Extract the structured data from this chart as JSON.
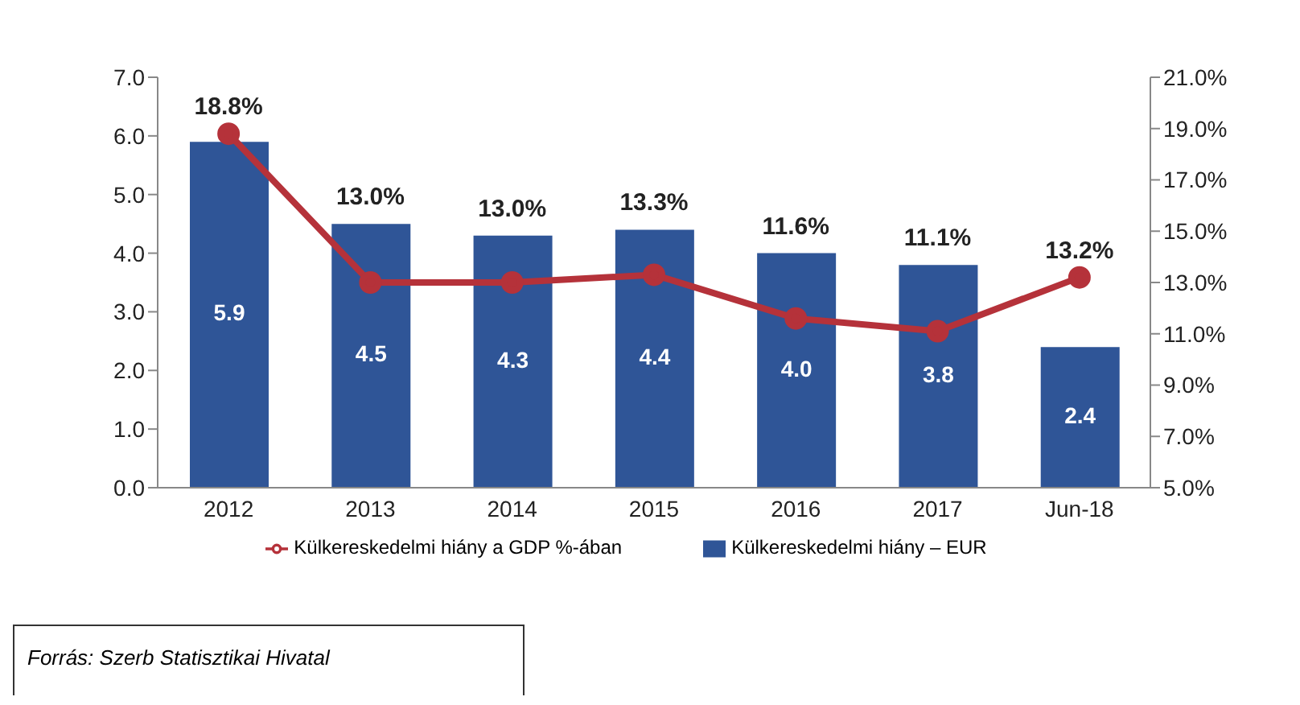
{
  "chart_data": {
    "type": "bar",
    "categories": [
      "2012",
      "2013",
      "2014",
      "2015",
      "2016",
      "2017",
      "Jun-18"
    ],
    "series": [
      {
        "name": "Külkereskedelmi hiány – EUR",
        "color": "#2f5597",
        "values": [
          5.9,
          4.5,
          4.3,
          4.4,
          4.0,
          3.8,
          2.4
        ],
        "value_labels": [
          "5.9",
          "4.5",
          "4.3",
          "4.4",
          "4.0",
          "3.8",
          "2.4"
        ]
      },
      {
        "name": "Külkereskedelmi hiány a GDP %-ában",
        "type": "line",
        "axis": "y2",
        "color": "#b5323a",
        "marker": "circle",
        "values": [
          18.8,
          13.0,
          13.0,
          13.3,
          11.6,
          11.1,
          13.2
        ],
        "value_labels": [
          "18.8%",
          "13.0%",
          "13.0%",
          "13.3%",
          "11.6%",
          "11.1%",
          "13.2%"
        ]
      }
    ],
    "ylim": [
      0,
      7
    ],
    "yticks": [
      {
        "value": 0,
        "label": "0.0"
      },
      {
        "value": 1,
        "label": "1.0"
      },
      {
        "value": 2,
        "label": "2.0"
      },
      {
        "value": 3,
        "label": "3.0"
      },
      {
        "value": 4,
        "label": "4.0"
      },
      {
        "value": 5,
        "label": "5.0"
      },
      {
        "value": 6,
        "label": "6.0"
      },
      {
        "value": 7,
        "label": "7.0"
      }
    ],
    "y2lim": [
      5,
      21
    ],
    "y2ticks": [
      {
        "value": 5,
        "label": "5.0%"
      },
      {
        "value": 7,
        "label": "7.0%"
      },
      {
        "value": 9,
        "label": "9.0%"
      },
      {
        "value": 11,
        "label": "11.0%"
      },
      {
        "value": 13,
        "label": "13.0%"
      },
      {
        "value": 15,
        "label": "15.0%"
      },
      {
        "value": 17,
        "label": "17.0%"
      },
      {
        "value": 19,
        "label": "19.0%"
      },
      {
        "value": 21,
        "label": "21.0%"
      }
    ],
    "legend": "bottom",
    "annotations": [
      "Forrás: Szerb Statisztikai Hivatal"
    ]
  }
}
